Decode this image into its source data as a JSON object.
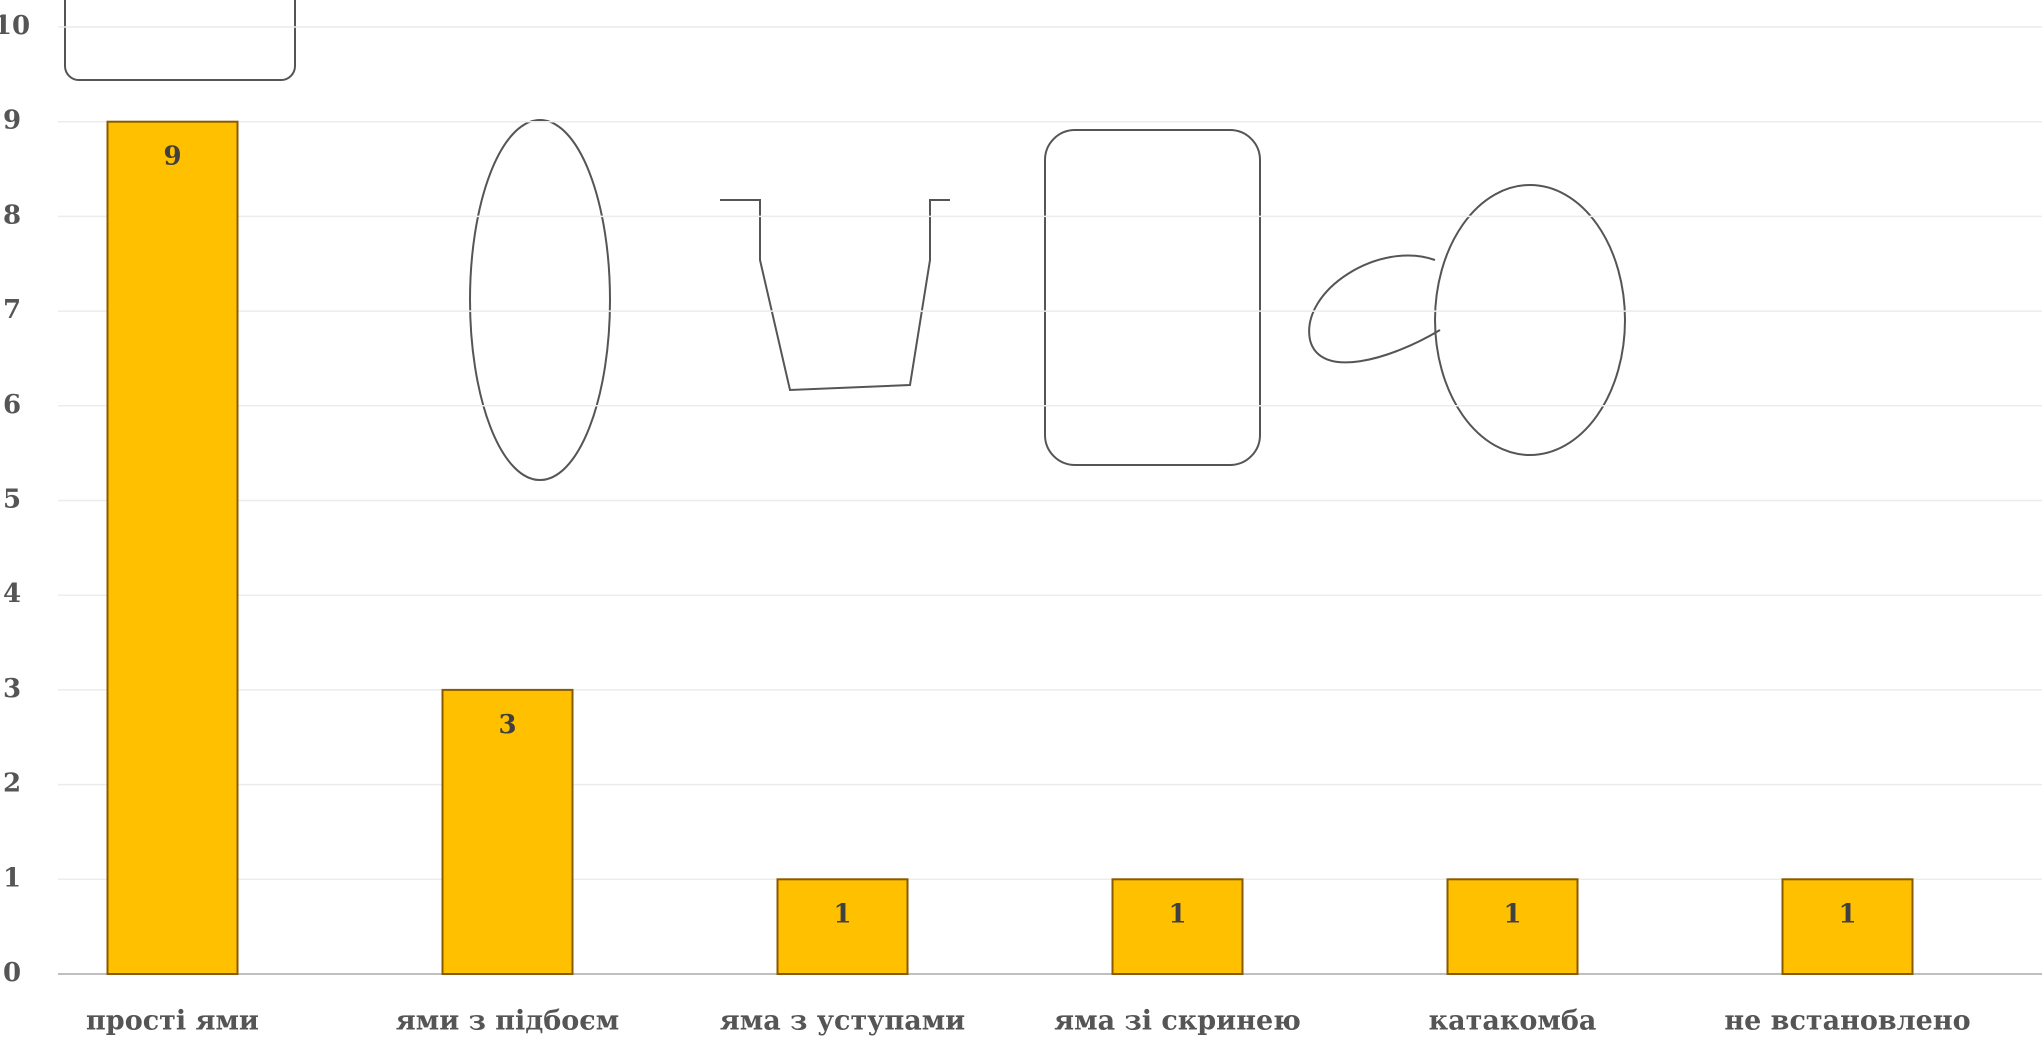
{
  "chart_data": {
    "type": "bar",
    "categories": [
      "прості ями",
      "ями з підбоєм",
      "яма з уступами",
      "яма зі скринею",
      "катакомба",
      "не встановлено"
    ],
    "values": [
      9,
      3,
      1,
      1,
      1,
      1
    ],
    "color": "#ffc000",
    "ylim": [
      0,
      10
    ],
    "yticks": [
      0,
      1,
      2,
      3,
      4,
      5,
      6,
      7,
      8,
      9,
      10
    ],
    "grid": true
  }
}
